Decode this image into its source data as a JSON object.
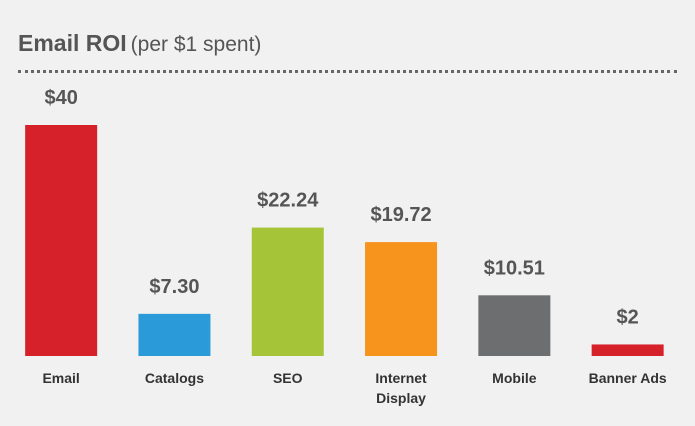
{
  "chart_data": {
    "type": "bar",
    "title": "Email ROI",
    "subtitle": "(per $1 spent)",
    "categories": [
      "Email",
      "Catalogs",
      "SEO",
      "Internet Display",
      "Mobile",
      "Banner Ads"
    ],
    "values": [
      40,
      7.3,
      22.24,
      19.72,
      10.51,
      2
    ],
    "value_labels": [
      "$40",
      "$7.30",
      "$22.24",
      "$19.72",
      "$10.51",
      "$2"
    ],
    "colors": [
      "#d6212b",
      "#2a9bd8",
      "#a6c438",
      "#f7941d",
      "#6d6e70",
      "#d6212b"
    ]
  }
}
